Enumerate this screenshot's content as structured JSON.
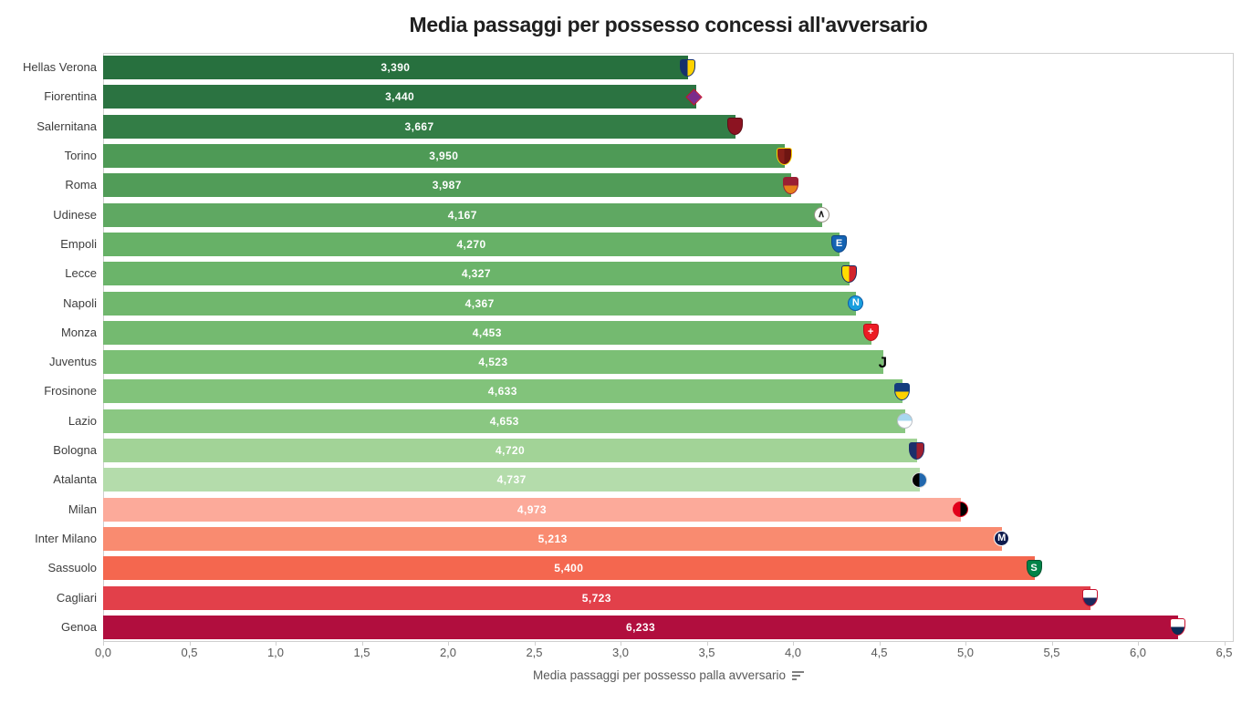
{
  "title": "Media passaggi per possesso concessi all'avversario",
  "chart_data": {
    "type": "bar",
    "orientation": "horizontal",
    "title": "Media passaggi per possesso concessi all'avversario",
    "xlabel": "Media passaggi per possesso palla avversario",
    "ylabel": "",
    "xlim": [
      0,
      6.5
    ],
    "grid": false,
    "legend": "none",
    "x_tick_values": [
      0,
      0.5,
      1.0,
      1.5,
      2.0,
      2.5,
      3.0,
      3.5,
      4.0,
      4.5,
      5.0,
      5.5,
      6.0,
      6.5
    ],
    "x_tick_labels": [
      "0,0",
      "0,5",
      "1,0",
      "1,5",
      "2,0",
      "2,5",
      "3,0",
      "3,5",
      "4,0",
      "4,5",
      "5,0",
      "5,5",
      "6,0",
      "6,5"
    ],
    "categories": [
      "Hellas Verona",
      "Fiorentina",
      "Salernitana",
      "Torino",
      "Roma",
      "Udinese",
      "Empoli",
      "Lecce",
      "Napoli",
      "Monza",
      "Juventus",
      "Frosinone",
      "Lazio",
      "Bologna",
      "Atalanta",
      "Milan",
      "Inter Milano",
      "Sassuolo",
      "Cagliari",
      "Genoa"
    ],
    "values": [
      3.39,
      3.44,
      3.667,
      3.95,
      3.987,
      4.167,
      4.27,
      4.327,
      4.367,
      4.453,
      4.523,
      4.633,
      4.653,
      4.72,
      4.737,
      4.973,
      5.213,
      5.4,
      5.723,
      6.233
    ],
    "value_labels": [
      "3,390",
      "3,440",
      "3,667",
      "3,950",
      "3,987",
      "4,167",
      "4,270",
      "4,327",
      "4,367",
      "4,453",
      "4,523",
      "4,633",
      "4,653",
      "4,720",
      "4,737",
      "4,973",
      "5,213",
      "5,400",
      "5,723",
      "6,233"
    ],
    "bar_colors": [
      "#27703E",
      "#2B7341",
      "#337D46",
      "#4E9A56",
      "#519C58",
      "#5FA862",
      "#67B167",
      "#6BB46A",
      "#70B76D",
      "#74BA70",
      "#7BBF75",
      "#82C37B",
      "#8AC782",
      "#A2D397",
      "#B4DCAB",
      "#FCAA9A",
      "#F98B70",
      "#F4674F",
      "#E2404A",
      "#B10E3E"
    ],
    "value_label_color": "#FFFFFF",
    "category_label_color": "#3D3D3D",
    "axis_color": "#595959",
    "plot_border_color": "#CFCFCF",
    "title_color": "#1F1F1F"
  },
  "teams": [
    {
      "name": "Hellas Verona",
      "logo": {
        "shape": "shield",
        "split": "v",
        "colors": [
          "#17306B",
          "#FFD200"
        ],
        "ring": "#17306B",
        "letter": "",
        "letter_color": ""
      }
    },
    {
      "name": "Fiorentina",
      "logo": {
        "shape": "diamond",
        "split": "v",
        "colors": [
          "#7B2D8B",
          "#7B2D8B"
        ],
        "ring": "#C8102E",
        "letter": "",
        "letter_color": ""
      }
    },
    {
      "name": "Salernitana",
      "logo": {
        "shape": "shield",
        "split": "v",
        "colors": [
          "#8C1321",
          "#8C1321"
        ],
        "ring": "#5E0C16",
        "letter": "",
        "letter_color": ""
      }
    },
    {
      "name": "Torino",
      "logo": {
        "shape": "shield",
        "split": "v",
        "colors": [
          "#881F19",
          "#6E1512"
        ],
        "ring": "#FFD200",
        "letter": "",
        "letter_color": ""
      }
    },
    {
      "name": "Roma",
      "logo": {
        "shape": "shield",
        "split": "h",
        "colors": [
          "#9A1F33",
          "#E68019"
        ],
        "ring": "#9A1F33",
        "letter": "",
        "letter_color": ""
      }
    },
    {
      "name": "Udinese",
      "logo": {
        "shape": "circle",
        "split": "v",
        "colors": [
          "#FFFFFF",
          "#FFFFFF"
        ],
        "ring": "#9C958A",
        "letter": "∧",
        "letter_color": "#1A1A1A"
      }
    },
    {
      "name": "Empoli",
      "logo": {
        "shape": "shield",
        "split": "v",
        "colors": [
          "#1463B3",
          "#1463B3"
        ],
        "ring": "#0D4484",
        "letter": "E",
        "letter_color": "#FFFFFF"
      }
    },
    {
      "name": "Lecce",
      "logo": {
        "shape": "shield",
        "split": "v",
        "colors": [
          "#FFDD00",
          "#D2232A"
        ],
        "ring": "#1B2A5E",
        "letter": "",
        "letter_color": ""
      }
    },
    {
      "name": "Napoli",
      "logo": {
        "shape": "circle",
        "split": "v",
        "colors": [
          "#199FDE",
          "#199FDE"
        ],
        "ring": "#0E5CA8",
        "letter": "N",
        "letter_color": "#FFFFFF"
      }
    },
    {
      "name": "Monza",
      "logo": {
        "shape": "shield",
        "split": "v",
        "colors": [
          "#ED1C24",
          "#ED1C24"
        ],
        "ring": "#B5121B",
        "letter": "+",
        "letter_color": "#FFFFFF"
      }
    },
    {
      "name": "Juventus",
      "logo": {
        "shape": "letteronly",
        "split": "v",
        "colors": [
          "transparent",
          "transparent"
        ],
        "ring": "transparent",
        "letter": "J",
        "letter_color": "#000000"
      }
    },
    {
      "name": "Frosinone",
      "logo": {
        "shape": "shield",
        "split": "h",
        "colors": [
          "#123C7E",
          "#FFD200"
        ],
        "ring": "#123C7E",
        "letter": "",
        "letter_color": ""
      }
    },
    {
      "name": "Lazio",
      "logo": {
        "shape": "circle",
        "split": "h",
        "colors": [
          "#A8D8F0",
          "#FFFFFF"
        ],
        "ring": "#B9BFC6",
        "letter": "",
        "letter_color": ""
      }
    },
    {
      "name": "Bologna",
      "logo": {
        "shape": "shield",
        "split": "v",
        "colors": [
          "#1B2F6B",
          "#9F1F2F"
        ],
        "ring": "#1B2F6B",
        "letter": "",
        "letter_color": ""
      }
    },
    {
      "name": "Atalanta",
      "logo": {
        "shape": "circle",
        "split": "v",
        "colors": [
          "#000000",
          "#2268AE"
        ],
        "ring": "#D9D9D9",
        "letter": "",
        "letter_color": ""
      }
    },
    {
      "name": "Milan",
      "logo": {
        "shape": "circle",
        "split": "v",
        "colors": [
          "#E2001A",
          "#000000"
        ],
        "ring": "#E2001A",
        "letter": "",
        "letter_color": ""
      }
    },
    {
      "name": "Inter Milano",
      "logo": {
        "shape": "circle",
        "split": "v",
        "colors": [
          "#0E1B4D",
          "#0E1B4D"
        ],
        "ring": "#FFFFFF",
        "letter": "M",
        "letter_color": "#FFFFFF"
      }
    },
    {
      "name": "Sassuolo",
      "logo": {
        "shape": "shield",
        "split": "v",
        "colors": [
          "#008348",
          "#008348"
        ],
        "ring": "#00522D",
        "letter": "S",
        "letter_color": "#FFFFFF"
      }
    },
    {
      "name": "Cagliari",
      "logo": {
        "shape": "shield",
        "split": "h",
        "colors": [
          "#FFFFFF",
          "#1B2A5E"
        ],
        "ring": "#C8102E",
        "letter": "",
        "letter_color": ""
      }
    },
    {
      "name": "Genoa",
      "logo": {
        "shape": "shield",
        "split": "h",
        "colors": [
          "#FFFFFF",
          "#0B2A55"
        ],
        "ring": "#C8102E",
        "letter": "",
        "letter_color": ""
      }
    }
  ],
  "axis_sort_icon": "sort-descending-icon"
}
